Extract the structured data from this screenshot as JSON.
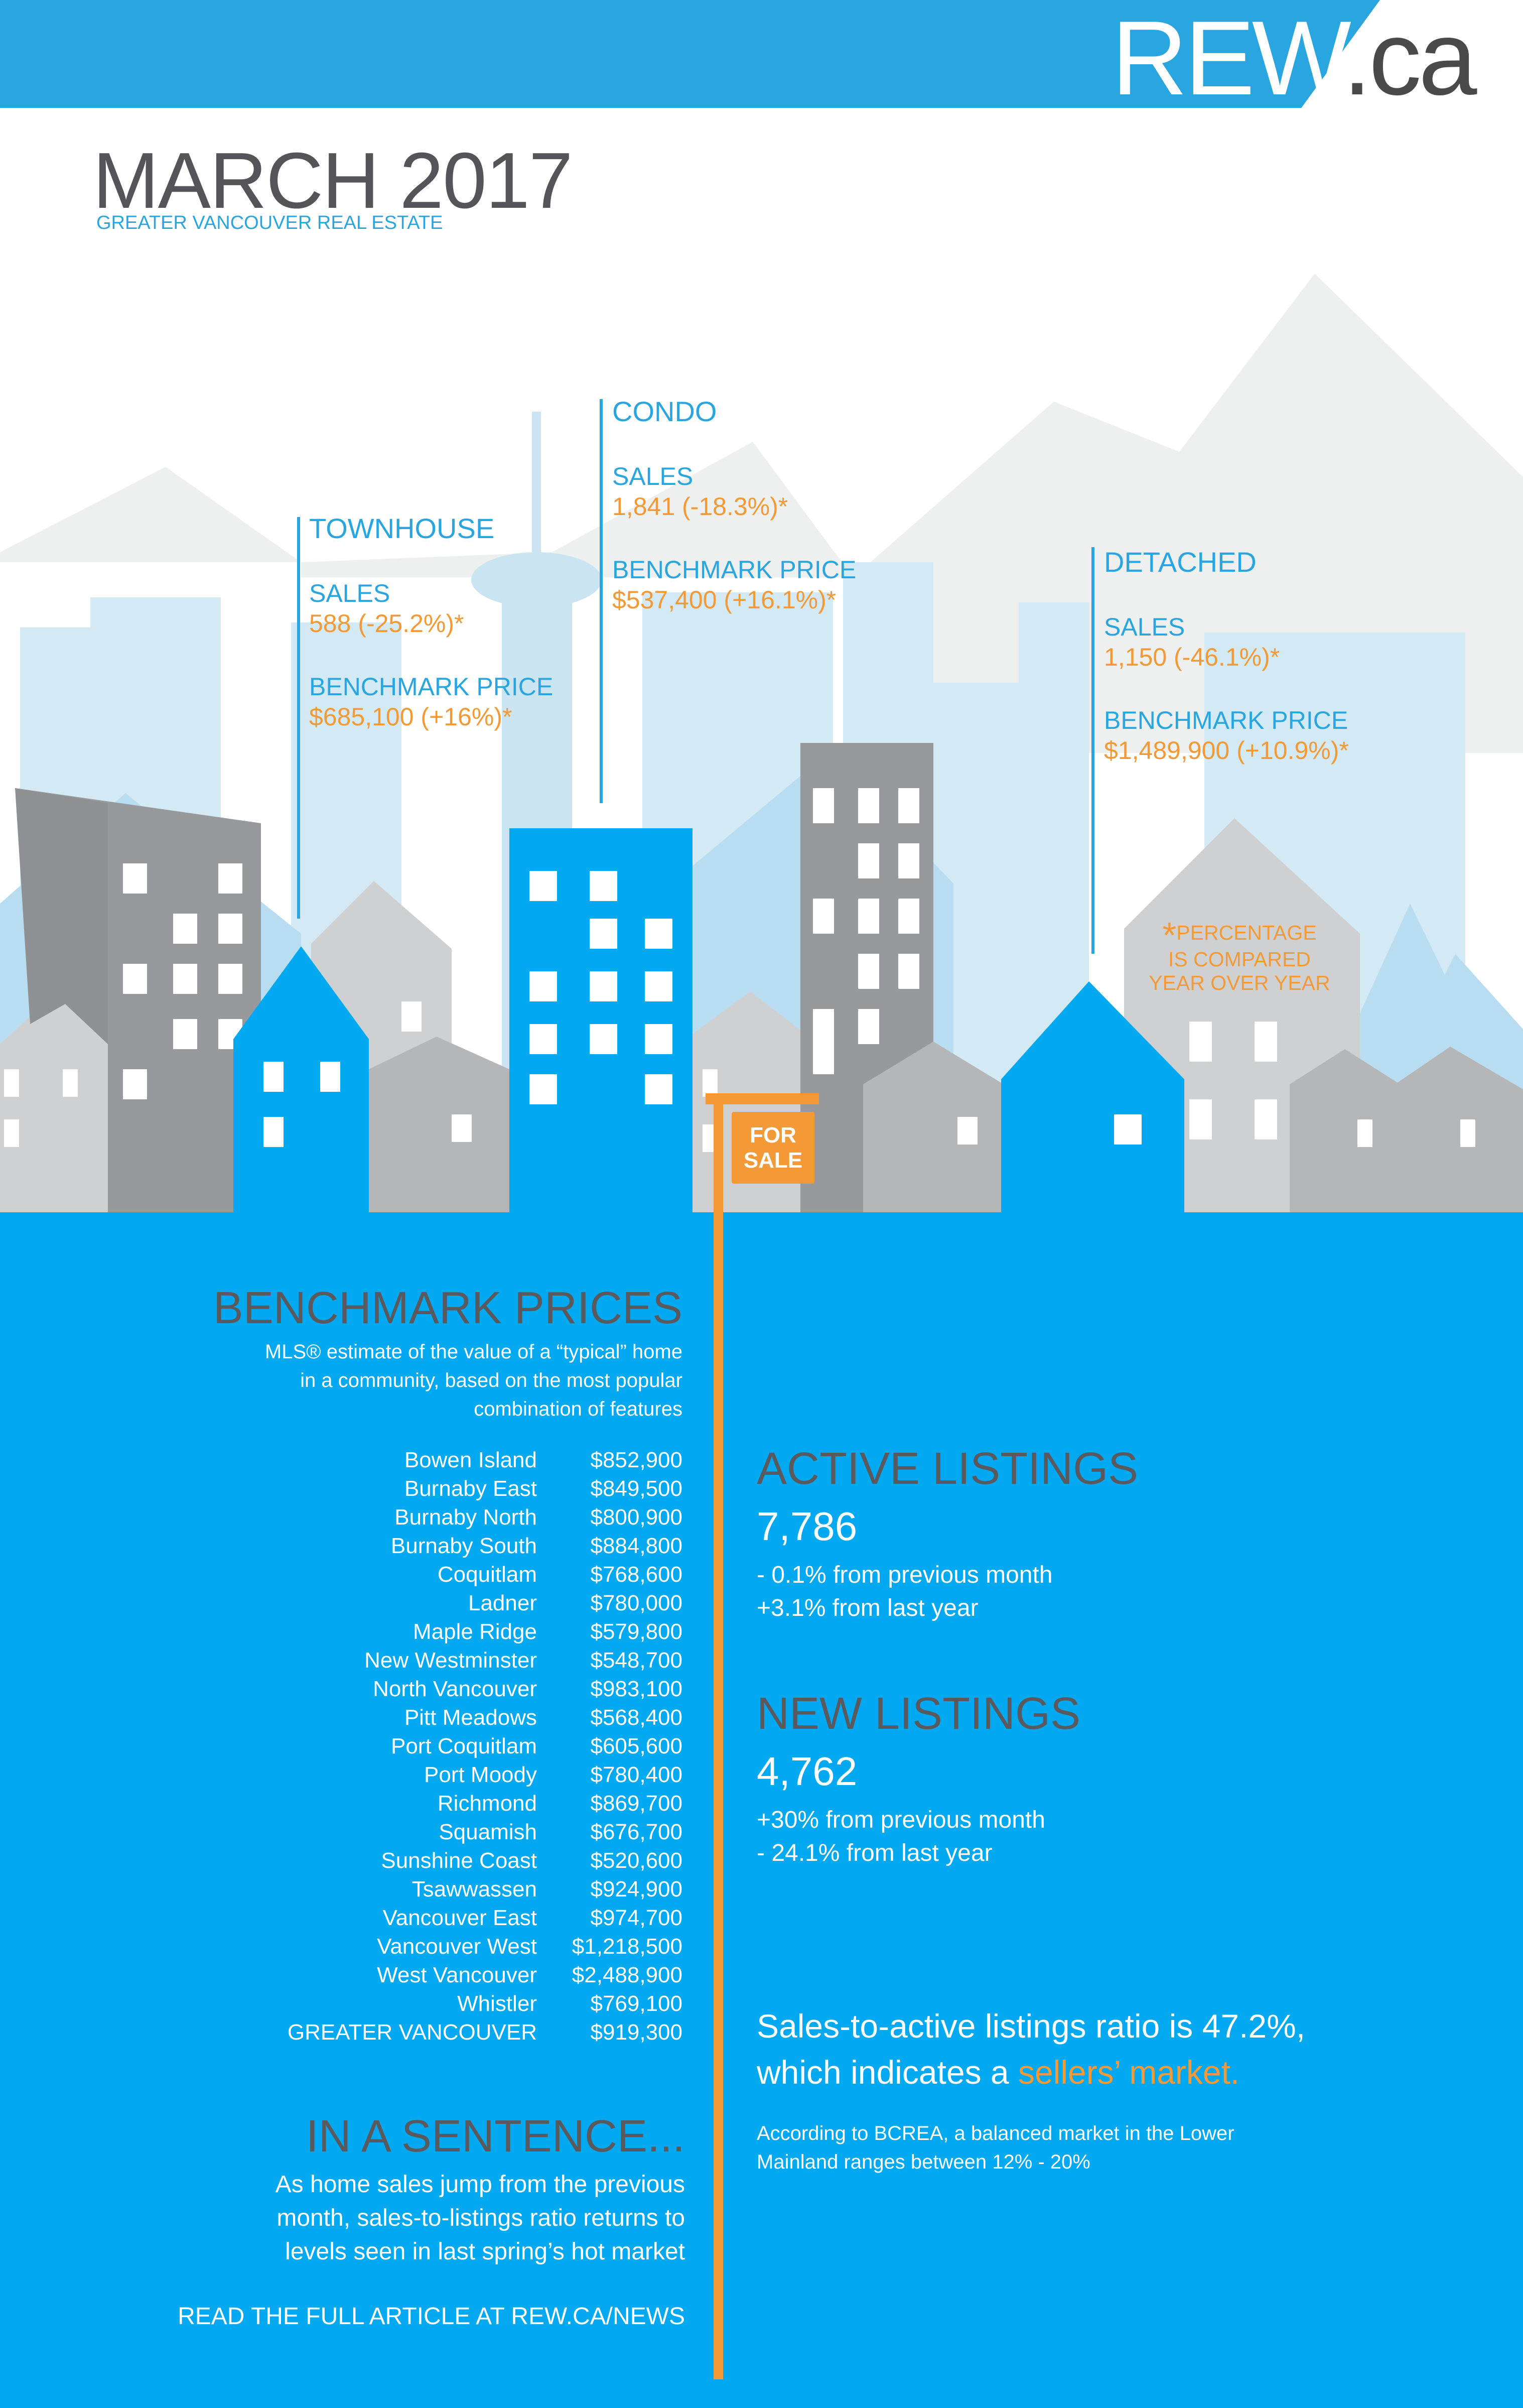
{
  "logo": {
    "part1": "REW",
    "part2": ".ca"
  },
  "header": {
    "title": "MARCH 2017",
    "subtitle": "GREATER VANCOUVER REAL ESTATE"
  },
  "callouts": {
    "townhouse": {
      "heading": "TOWNHOUSE",
      "sales_label": "SALES",
      "sales_value": "588 (-25.2%)*",
      "price_label": "BENCHMARK PRICE",
      "price_value": "$685,100 (+16%)*"
    },
    "condo": {
      "heading": "CONDO",
      "sales_label": "SALES",
      "sales_value": "1,841 (-18.3%)*",
      "price_label": "BENCHMARK PRICE",
      "price_value": "$537,400 (+16.1%)*"
    },
    "detached": {
      "heading": "DETACHED",
      "sales_label": "SALES",
      "sales_value": "1,150 (-46.1%)*",
      "price_label": "BENCHMARK PRICE",
      "price_value": "$1,489,900 (+10.9%)*"
    }
  },
  "note": {
    "star": "*",
    "line1": "PERCENTAGE",
    "line2": "IS COMPARED",
    "line3": "YEAR OVER YEAR"
  },
  "sign": {
    "line1": "FOR",
    "line2": "SALE"
  },
  "benchmark": {
    "title": "BENCHMARK PRICES",
    "desc_line1": "MLS® estimate of the value of a “typical” home",
    "desc_line2": "in a community, based on the most popular",
    "desc_line3": "combination of features",
    "rows": [
      {
        "name": "Bowen Island",
        "price": "$852,900"
      },
      {
        "name": "Burnaby East",
        "price": "$849,500"
      },
      {
        "name": "Burnaby North",
        "price": "$800,900"
      },
      {
        "name": "Burnaby South",
        "price": "$884,800"
      },
      {
        "name": "Coquitlam",
        "price": "$768,600"
      },
      {
        "name": "Ladner",
        "price": "$780,000"
      },
      {
        "name": "Maple Ridge",
        "price": "$579,800"
      },
      {
        "name": "New Westminster",
        "price": "$548,700"
      },
      {
        "name": "North Vancouver",
        "price": "$983,100"
      },
      {
        "name": "Pitt Meadows",
        "price": "$568,400"
      },
      {
        "name": "Port Coquitlam",
        "price": "$605,600"
      },
      {
        "name": "Port Moody",
        "price": "$780,400"
      },
      {
        "name": "Richmond",
        "price": "$869,700"
      },
      {
        "name": "Squamish",
        "price": "$676,700"
      },
      {
        "name": "Sunshine Coast",
        "price": "$520,600"
      },
      {
        "name": "Tsawwassen",
        "price": "$924,900"
      },
      {
        "name": "Vancouver East",
        "price": "$974,700"
      },
      {
        "name": "Vancouver West",
        "price": "$1,218,500"
      },
      {
        "name": "West Vancouver",
        "price": "$2,488,900"
      },
      {
        "name": "Whistler",
        "price": "$769,100"
      },
      {
        "name": "GREATER VANCOUVER",
        "price": "$919,300"
      }
    ]
  },
  "sentence": {
    "title": "IN A SENTENCE...",
    "line1": "As home sales jump from the previous",
    "line2": "month, sales-to-listings ratio returns to",
    "line3": "levels seen in last spring’s hot market",
    "read_more": "READ THE FULL ARTICLE AT REW.CA/NEWS"
  },
  "active_listings": {
    "title": "ACTIVE LISTINGS",
    "value": "7,786",
    "line1": "- 0.1% from previous month",
    "line2": "+3.1% from last year"
  },
  "new_listings": {
    "title": "NEW LISTINGS",
    "value": "4,762",
    "line1": "+30% from previous month",
    "line2": "- 24.1% from last year"
  },
  "ratio": {
    "line1": "Sales-to-active listings ratio is 47.2%,",
    "line2_prefix": "which indicates a ",
    "highlight": "sellers’  market.",
    "bcrea_line1": "According to BCREA, a balanced market in the Lower",
    "bcrea_line2": "Mainland ranges between 12% - 20%"
  },
  "colors": {
    "blue": "#03a9f0",
    "header_blue": "#29a6df",
    "orange": "#f39a37",
    "dark_gray": "#5a5a5e"
  }
}
